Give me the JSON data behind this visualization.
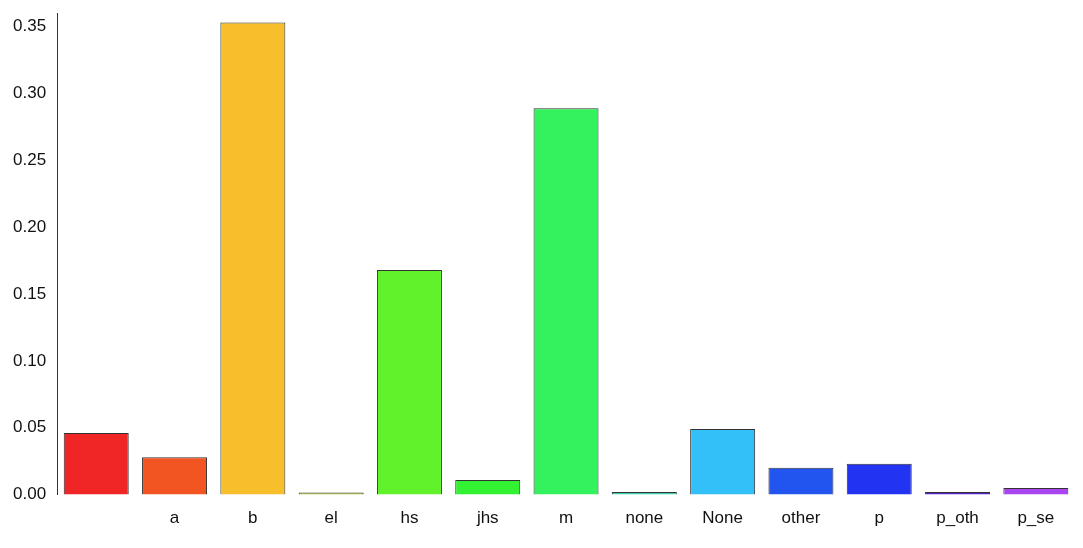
{
  "chart_data": {
    "type": "bar",
    "categories": [
      null,
      "a",
      "b",
      "el",
      "hs",
      "jhs",
      "m",
      "none",
      "None",
      "other",
      "p",
      "p_oth",
      "p_se"
    ],
    "values": [
      0.046,
      0.028,
      0.353,
      0.0015,
      0.168,
      0.011,
      0.289,
      0.002,
      0.049,
      0.02,
      0.023,
      0.002,
      0.005
    ],
    "colors": [
      "#f02525",
      "#f25522",
      "#f7bf2c",
      "#a8b820",
      "#62f22c",
      "#33f233",
      "#33f25e",
      "#3ad0b0",
      "#33bff7",
      "#2255f0",
      "#2233f2",
      "#5522c8",
      "#a844f0"
    ],
    "ylim": [
      0,
      0.36
    ],
    "yticks": [
      {
        "value": 0,
        "label": "0.00"
      },
      {
        "value": 0.05,
        "label": "0.05"
      },
      {
        "value": 0.1,
        "label": "0.10"
      },
      {
        "value": 0.15,
        "label": "0.15"
      },
      {
        "value": 0.2,
        "label": "0.20"
      },
      {
        "value": 0.25,
        "label": "0.25"
      },
      {
        "value": 0.3,
        "label": "0.30"
      },
      {
        "value": 0.35,
        "label": "0.35"
      }
    ],
    "grid": false,
    "legend": false
  }
}
